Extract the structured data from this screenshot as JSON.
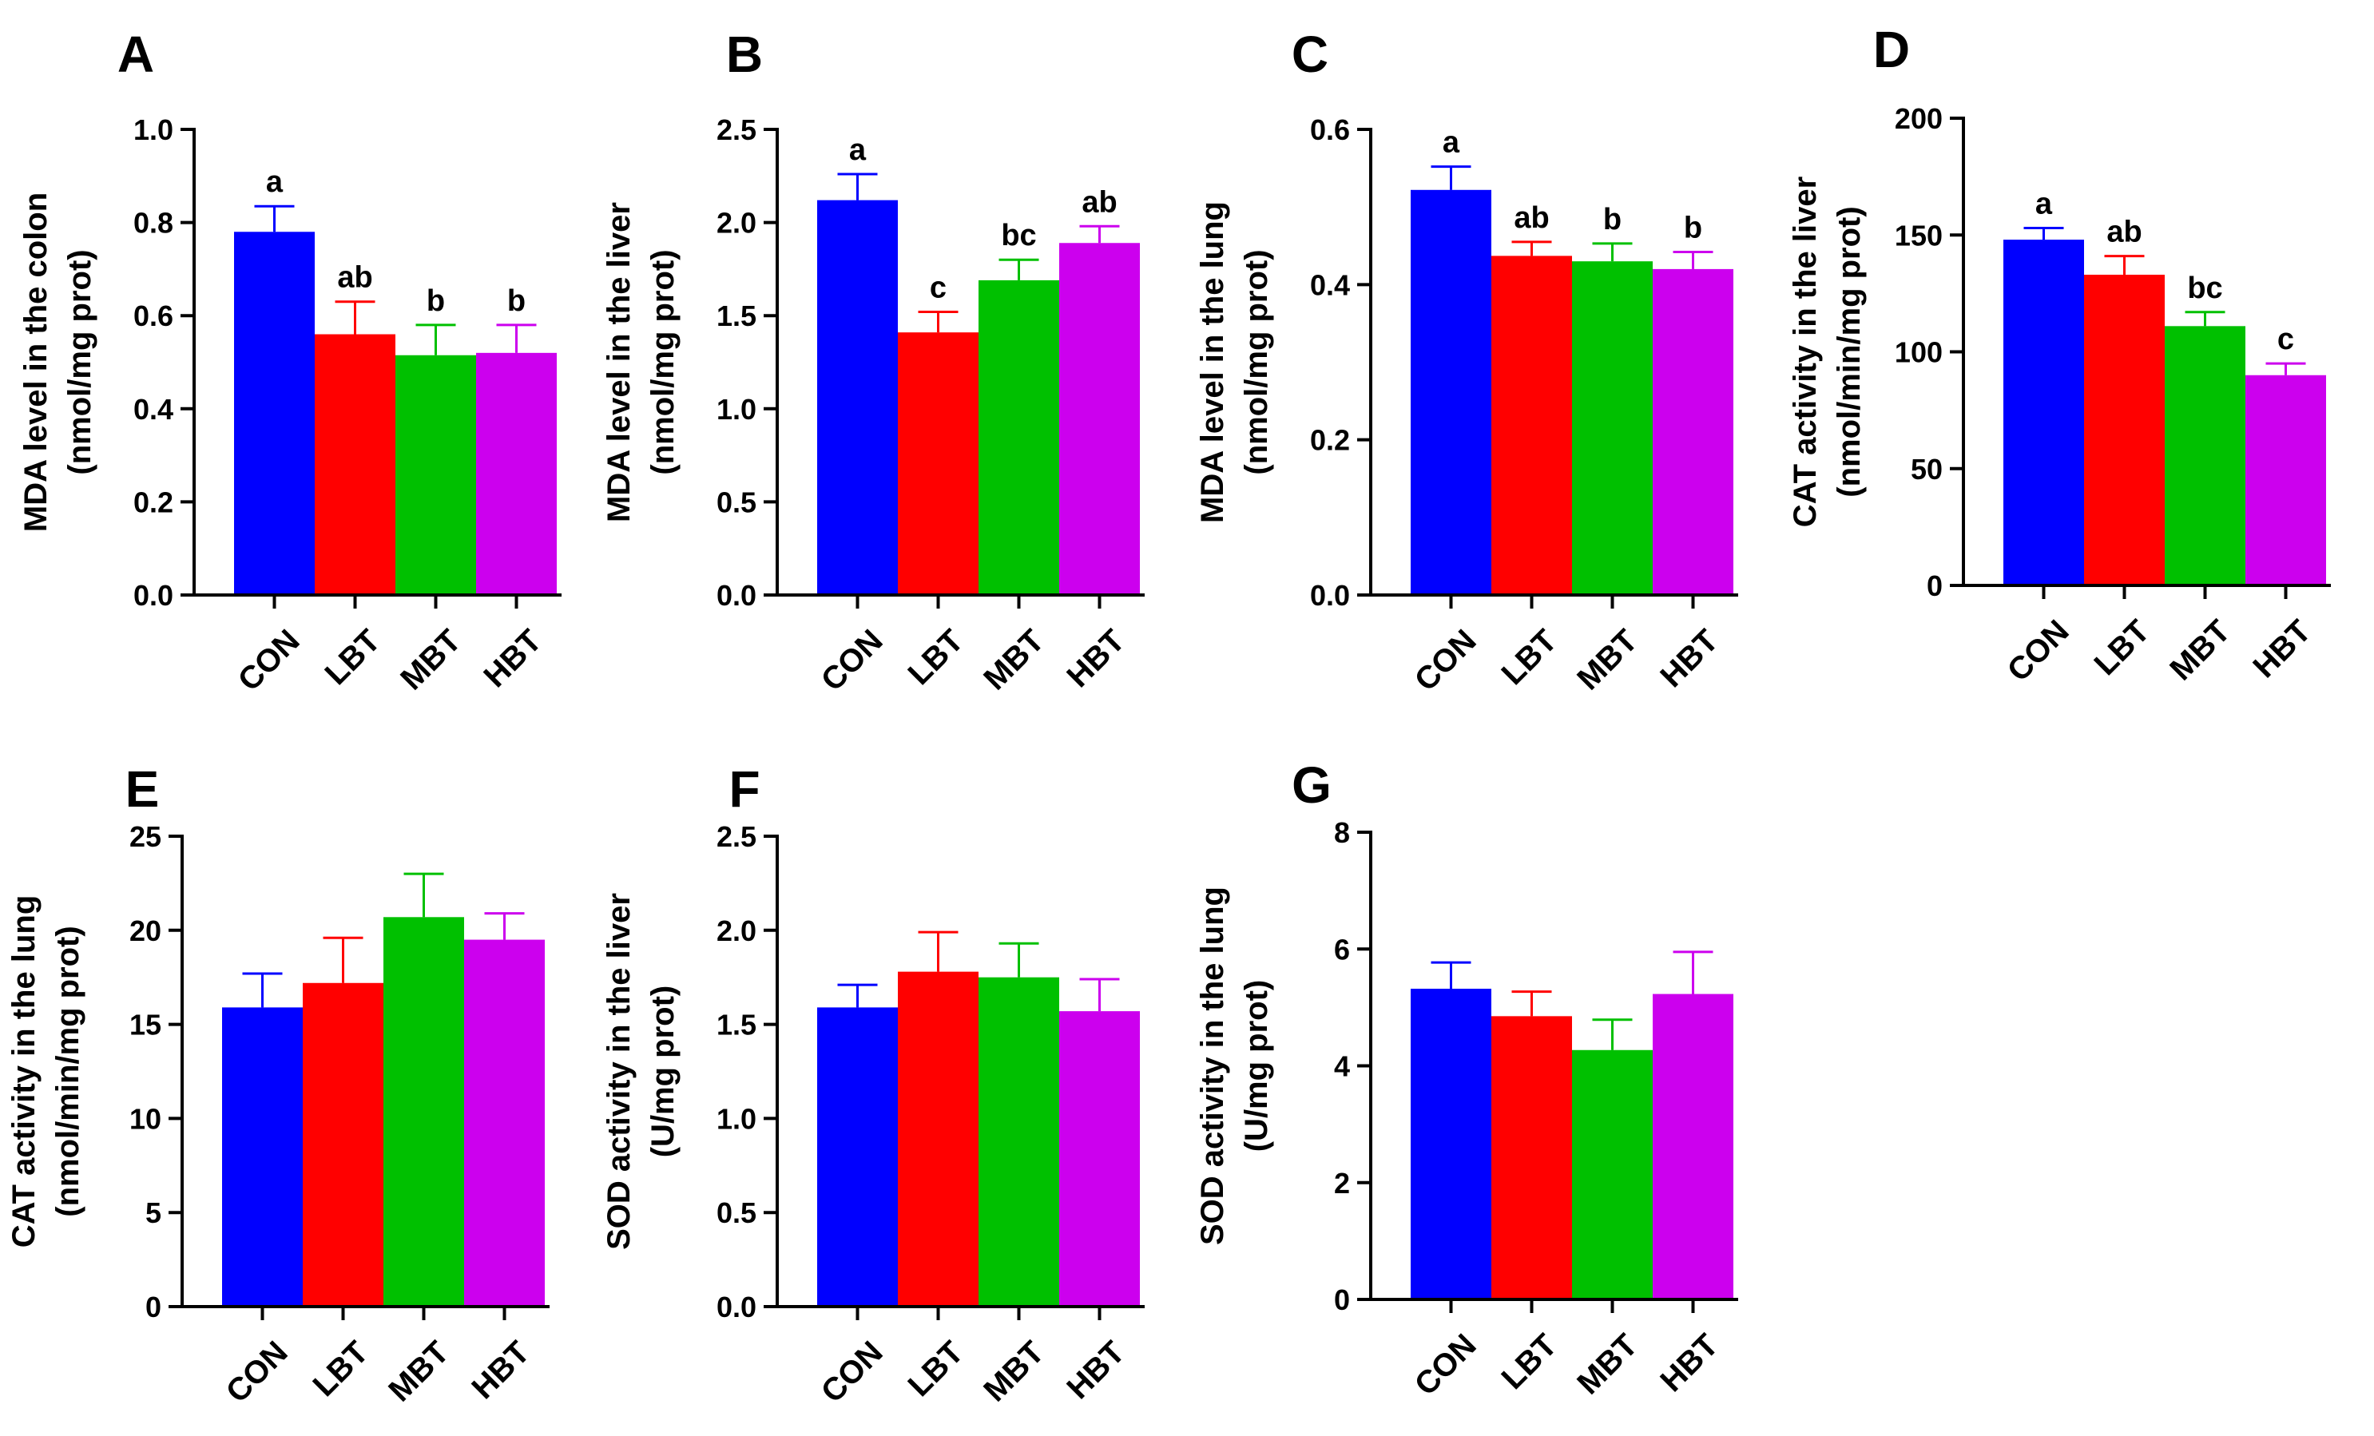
{
  "colors": {
    "CON": "#0000FF",
    "LBT": "#FF0000",
    "MBT": "#00C000",
    "HBT": "#CC00EE"
  },
  "chart_data": [
    {
      "panel": "A",
      "type": "bar",
      "categories": [
        "CON",
        "LBT",
        "MBT",
        "HBT"
      ],
      "values": [
        0.78,
        0.56,
        0.515,
        0.52
      ],
      "errors": [
        0.055,
        0.07,
        0.065,
        0.06
      ],
      "letters": [
        "a",
        "ab",
        "b",
        "b"
      ],
      "ylabel": [
        "MDA level in the colon",
        "(nmol/mg prot)"
      ],
      "ylim": [
        0,
        1.0
      ],
      "ticks": [
        0,
        0.2,
        0.4,
        0.6,
        0.8,
        1.0
      ],
      "tick_labels": [
        "0.0",
        "0.2",
        "0.4",
        "0.6",
        "0.8",
        "1.0"
      ]
    },
    {
      "panel": "B",
      "type": "bar",
      "categories": [
        "CON",
        "LBT",
        "MBT",
        "HBT"
      ],
      "values": [
        2.12,
        1.41,
        1.69,
        1.89
      ],
      "errors": [
        0.14,
        0.11,
        0.11,
        0.09
      ],
      "letters": [
        "a",
        "c",
        "bc",
        "ab"
      ],
      "ylabel": [
        "MDA level in the liver",
        "(nmol/mg prot)"
      ],
      "ylim": [
        0,
        2.5
      ],
      "ticks": [
        0,
        0.5,
        1.0,
        1.5,
        2.0,
        2.5
      ],
      "tick_labels": [
        "0.0",
        "0.5",
        "1.0",
        "1.5",
        "2.0",
        "2.5"
      ]
    },
    {
      "panel": "C",
      "type": "bar",
      "categories": [
        "CON",
        "LBT",
        "MBT",
        "HBT"
      ],
      "values": [
        0.522,
        0.437,
        0.43,
        0.42
      ],
      "errors": [
        0.03,
        0.018,
        0.023,
        0.022
      ],
      "letters": [
        "a",
        "ab",
        "b",
        "b"
      ],
      "ylabel": [
        "MDA level in the lung",
        "(nmol/mg prot)"
      ],
      "ylim": [
        0,
        0.6
      ],
      "ticks": [
        0,
        0.2,
        0.4,
        0.6
      ],
      "tick_labels": [
        "0.0",
        "0.2",
        "0.4",
        "0.6"
      ]
    },
    {
      "panel": "D",
      "type": "bar",
      "categories": [
        "CON",
        "LBT",
        "MBT",
        "HBT"
      ],
      "values": [
        148,
        133,
        111,
        90
      ],
      "errors": [
        5,
        8,
        6,
        5
      ],
      "letters": [
        "a",
        "ab",
        "bc",
        "c"
      ],
      "ylabel": [
        "CAT activity in the liver",
        "(nmol/min/mg prot)"
      ],
      "ylim": [
        0,
        200
      ],
      "ticks": [
        0,
        50,
        100,
        150,
        200
      ],
      "tick_labels": [
        "0",
        "50",
        "100",
        "150",
        "200"
      ]
    },
    {
      "panel": "E",
      "type": "bar",
      "categories": [
        "CON",
        "LBT",
        "MBT",
        "HBT"
      ],
      "values": [
        15.9,
        17.2,
        20.7,
        19.5
      ],
      "errors": [
        1.8,
        2.4,
        2.3,
        1.4
      ],
      "letters": [],
      "ylabel": [
        "CAT activity in the lung",
        "(nmol/min/mg prot)"
      ],
      "ylim": [
        0,
        25
      ],
      "ticks": [
        0,
        5,
        10,
        15,
        20,
        25
      ],
      "tick_labels": [
        "0",
        "5",
        "10",
        "15",
        "20",
        "25"
      ]
    },
    {
      "panel": "F",
      "type": "bar",
      "categories": [
        "CON",
        "LBT",
        "MBT",
        "HBT"
      ],
      "values": [
        1.59,
        1.78,
        1.75,
        1.57
      ],
      "errors": [
        0.12,
        0.21,
        0.18,
        0.17
      ],
      "letters": [],
      "ylabel": [
        "SOD activity in the liver",
        "(U/mg prot)"
      ],
      "ylim": [
        0,
        2.5
      ],
      "ticks": [
        0,
        0.5,
        1.0,
        1.5,
        2.0,
        2.5
      ],
      "tick_labels": [
        "0.0",
        "0.5",
        "1.0",
        "1.5",
        "2.0",
        "2.5"
      ]
    },
    {
      "panel": "G",
      "type": "bar",
      "categories": [
        "CON",
        "LBT",
        "MBT",
        "HBT"
      ],
      "values": [
        5.32,
        4.85,
        4.27,
        5.23
      ],
      "errors": [
        0.45,
        0.42,
        0.52,
        0.72
      ],
      "letters": [],
      "ylabel": [
        "SOD activity in the lung",
        "(U/mg prot)"
      ],
      "ylim": [
        0,
        8
      ],
      "ticks": [
        0,
        2,
        4,
        6,
        8
      ],
      "tick_labels": [
        "0",
        "2",
        "4",
        "6",
        "8"
      ]
    }
  ]
}
